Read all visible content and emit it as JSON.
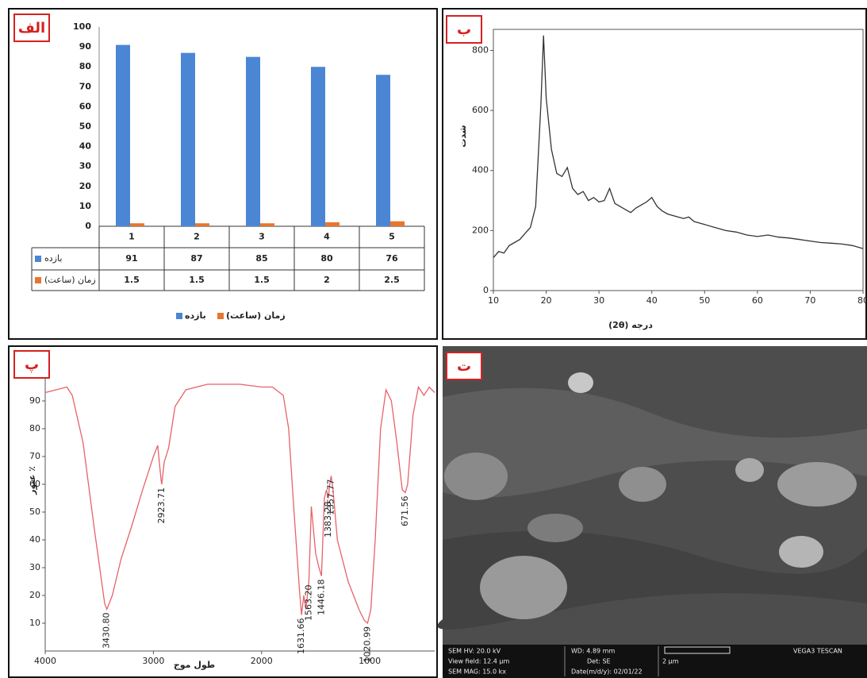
{
  "chart_data": [
    {
      "type": "bar",
      "panel_label": "الف",
      "categories": [
        "1",
        "2",
        "3",
        "4",
        "5"
      ],
      "series": [
        {
          "name": "بازده",
          "color": "#4a86d4",
          "values": [
            91,
            87,
            85,
            80,
            76
          ]
        },
        {
          "name": "زمان (ساعت)",
          "color": "#e8762d",
          "values": [
            1.5,
            1.5,
            1.5,
            2,
            2.5
          ]
        }
      ],
      "ylim": [
        0,
        100
      ],
      "yticks": [
        0,
        10,
        20,
        30,
        40,
        50,
        60,
        70,
        80,
        90,
        100
      ],
      "legend": "bottom"
    },
    {
      "type": "line",
      "panel_label": "ب",
      "x_label": "(2θ) درجه",
      "y_label": "شدت",
      "color": "#333333",
      "x": [
        10,
        11,
        12,
        13,
        14,
        15,
        16,
        17,
        18,
        19,
        19.5,
        20,
        21,
        22,
        23,
        24,
        25,
        26,
        27,
        28,
        29,
        30,
        31,
        32,
        33,
        34,
        35,
        36,
        37,
        38,
        39,
        40,
        41,
        42,
        43,
        44,
        45,
        46,
        47,
        48,
        49,
        50,
        52,
        54,
        56,
        58,
        60,
        62,
        64,
        66,
        68,
        70,
        72,
        74,
        76,
        78,
        80
      ],
      "values": [
        110,
        130,
        125,
        150,
        160,
        170,
        190,
        210,
        280,
        620,
        850,
        640,
        470,
        390,
        380,
        410,
        340,
        320,
        330,
        300,
        310,
        295,
        300,
        340,
        290,
        280,
        270,
        260,
        275,
        285,
        295,
        310,
        280,
        265,
        255,
        250,
        245,
        240,
        245,
        230,
        225,
        220,
        210,
        200,
        195,
        185,
        180,
        185,
        178,
        175,
        170,
        165,
        160,
        158,
        155,
        150,
        140
      ],
      "xlim": [
        10,
        80
      ],
      "xticks": [
        10,
        20,
        30,
        40,
        50,
        60,
        70,
        80
      ],
      "ylim": [
        0,
        870
      ],
      "yticks": [
        0,
        200,
        400,
        600,
        800
      ]
    },
    {
      "type": "line",
      "panel_label": "پ",
      "x_label": "طول موج",
      "y_label": "عبور ٪",
      "color": "#e8626a",
      "x": [
        4000,
        3900,
        3800,
        3750,
        3650,
        3550,
        3450,
        3430,
        3380,
        3300,
        3200,
        3100,
        3000,
        2960,
        2930,
        2923,
        2900,
        2860,
        2800,
        2700,
        2500,
        2200,
        2000,
        1900,
        1800,
        1750,
        1700,
        1650,
        1631,
        1610,
        1590,
        1563,
        1540,
        1500,
        1470,
        1446,
        1420,
        1400,
        1383,
        1370,
        1357,
        1340,
        1300,
        1200,
        1100,
        1050,
        1020,
        990,
        950,
        900,
        850,
        800,
        750,
        700,
        671,
        650,
        600,
        550,
        500,
        450,
        400
      ],
      "values": [
        93,
        94,
        95,
        92,
        75,
        45,
        17,
        15,
        20,
        33,
        45,
        58,
        70,
        74,
        62,
        60,
        68,
        73,
        88,
        94,
        96,
        96,
        95,
        95,
        92,
        80,
        50,
        22,
        13,
        20,
        15,
        25,
        52,
        35,
        30,
        27,
        55,
        58,
        55,
        60,
        63,
        58,
        40,
        25,
        15,
        11,
        10,
        15,
        40,
        80,
        94,
        90,
        75,
        58,
        57,
        60,
        85,
        95,
        92,
        95,
        93
      ],
      "xlim": [
        4000,
        400
      ],
      "xticks": [
        4000,
        3000,
        2000,
        1000
      ],
      "ylim": [
        0,
        100
      ],
      "yticks": [
        10,
        20,
        30,
        40,
        50,
        60,
        70,
        80,
        90
      ],
      "annotations": [
        {
          "text": "3430.80",
          "x": 3430,
          "y": 15
        },
        {
          "text": "2923.71",
          "x": 2923,
          "y": 60
        },
        {
          "text": "1631.66",
          "x": 1631,
          "y": 13
        },
        {
          "text": "1563.20",
          "x": 1563,
          "y": 25
        },
        {
          "text": "1446.18",
          "x": 1446,
          "y": 27
        },
        {
          "text": "1383.28",
          "x": 1383,
          "y": 55
        },
        {
          "text": "1357.77",
          "x": 1357,
          "y": 63
        },
        {
          "text": "1020.99",
          "x": 1020,
          "y": 10
        },
        {
          "text": "671.56",
          "x": 671,
          "y": 57
        }
      ]
    }
  ],
  "sem_panel": {
    "panel_label": "ت",
    "info": [
      "SEM HV: 20.0 kV",
      "WD: 4.89 mm",
      "VEGA3 TESCAN",
      "View field: 12.4 µm",
      "Det: SE",
      "2 µm",
      "SEM MAG: 15.0 kx",
      "Date(m/d/y): 02/01/22"
    ]
  }
}
